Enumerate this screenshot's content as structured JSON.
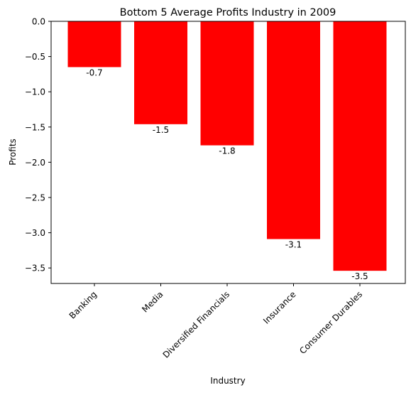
{
  "chart_data": {
    "type": "bar",
    "title": "Bottom 5 Average Profits Industry in 2009",
    "xlabel": "Industry",
    "ylabel": "Profits",
    "categories": [
      "Banking",
      "Media",
      "Diversified Financials",
      "Insurance",
      "Consumer Durables"
    ],
    "values": [
      -0.65,
      -1.46,
      -1.76,
      -3.09,
      -3.54
    ],
    "value_labels": [
      "-0.7",
      "-1.5",
      "-1.8",
      "-3.1",
      "-3.5"
    ],
    "ylim": [
      -3.72,
      0.0
    ],
    "yticks": [
      0.0,
      -0.5,
      -1.0,
      -1.5,
      -2.0,
      -2.5,
      -3.0,
      -3.5
    ],
    "ytick_labels": [
      "0.0",
      "−0.5",
      "−1.0",
      "−1.5",
      "−2.0",
      "−2.5",
      "−3.0",
      "−3.5"
    ],
    "grid": false,
    "legend": false,
    "bar_color": "#ff0000"
  }
}
